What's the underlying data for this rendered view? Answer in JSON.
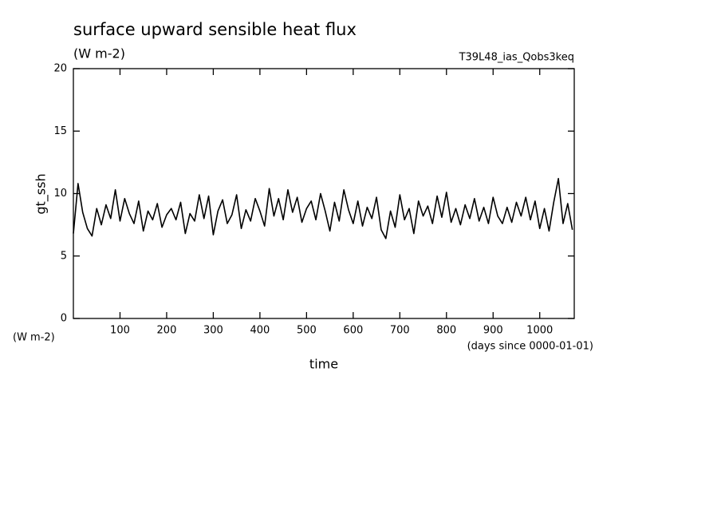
{
  "chart_data": {
    "type": "line",
    "title": "surface upward sensible heat flux",
    "subtitle": "(W m-2)",
    "run_label": "T39L48_ias_Qobs3keq",
    "ylabel": "gt_ssh",
    "yunit": "(W m-2)",
    "xlabel": "time",
    "xunit": "(days since 0000-01-01)",
    "xlim": [
      0,
      1074
    ],
    "ylim": [
      0,
      20
    ],
    "xticks": [
      100,
      200,
      300,
      400,
      500,
      600,
      700,
      800,
      900,
      1000
    ],
    "yticks": [
      0,
      5,
      10,
      15,
      20
    ],
    "color": "#000000",
    "x": [
      0,
      10,
      20,
      30,
      40,
      50,
      60,
      70,
      80,
      90,
      100,
      110,
      120,
      130,
      140,
      150,
      160,
      170,
      180,
      190,
      200,
      210,
      220,
      230,
      240,
      250,
      260,
      270,
      280,
      290,
      300,
      310,
      320,
      330,
      340,
      350,
      360,
      370,
      380,
      390,
      400,
      410,
      420,
      430,
      440,
      450,
      460,
      470,
      480,
      490,
      500,
      510,
      520,
      530,
      540,
      550,
      560,
      570,
      580,
      590,
      600,
      610,
      620,
      630,
      640,
      650,
      660,
      670,
      680,
      690,
      700,
      710,
      720,
      730,
      740,
      750,
      760,
      770,
      780,
      790,
      800,
      810,
      820,
      830,
      840,
      850,
      860,
      870,
      880,
      890,
      900,
      910,
      920,
      930,
      940,
      950,
      960,
      970,
      980,
      990,
      1000,
      1010,
      1020,
      1030,
      1040,
      1050,
      1060,
      1070
    ],
    "values": [
      6.8,
      10.8,
      8.5,
      7.2,
      6.6,
      8.8,
      7.5,
      9.1,
      8.0,
      10.3,
      7.8,
      9.6,
      8.4,
      7.6,
      9.4,
      7.0,
      8.6,
      7.9,
      9.2,
      7.3,
      8.3,
      8.8,
      7.9,
      9.3,
      6.8,
      8.4,
      7.8,
      9.9,
      8.0,
      9.8,
      6.7,
      8.6,
      9.5,
      7.6,
      8.3,
      9.9,
      7.2,
      8.7,
      7.8,
      9.6,
      8.6,
      7.4,
      10.4,
      8.2,
      9.6,
      7.9,
      10.3,
      8.5,
      9.7,
      7.7,
      8.8,
      9.4,
      7.9,
      10.0,
      8.6,
      7.0,
      9.3,
      7.8,
      10.3,
      8.7,
      7.6,
      9.4,
      7.4,
      8.9,
      8.0,
      9.7,
      7.1,
      6.4,
      8.6,
      7.3,
      9.9,
      7.9,
      8.8,
      6.8,
      9.4,
      8.2,
      9.0,
      7.6,
      9.8,
      8.1,
      10.1,
      7.7,
      8.8,
      7.5,
      9.1,
      8.0,
      9.6,
      7.8,
      8.9,
      7.6,
      9.7,
      8.2,
      7.6,
      8.9,
      7.7,
      9.3,
      8.2,
      9.7,
      7.9,
      9.4,
      7.2,
      8.8,
      7.0,
      9.3,
      11.2,
      7.6,
      9.2,
      7.1
    ]
  }
}
